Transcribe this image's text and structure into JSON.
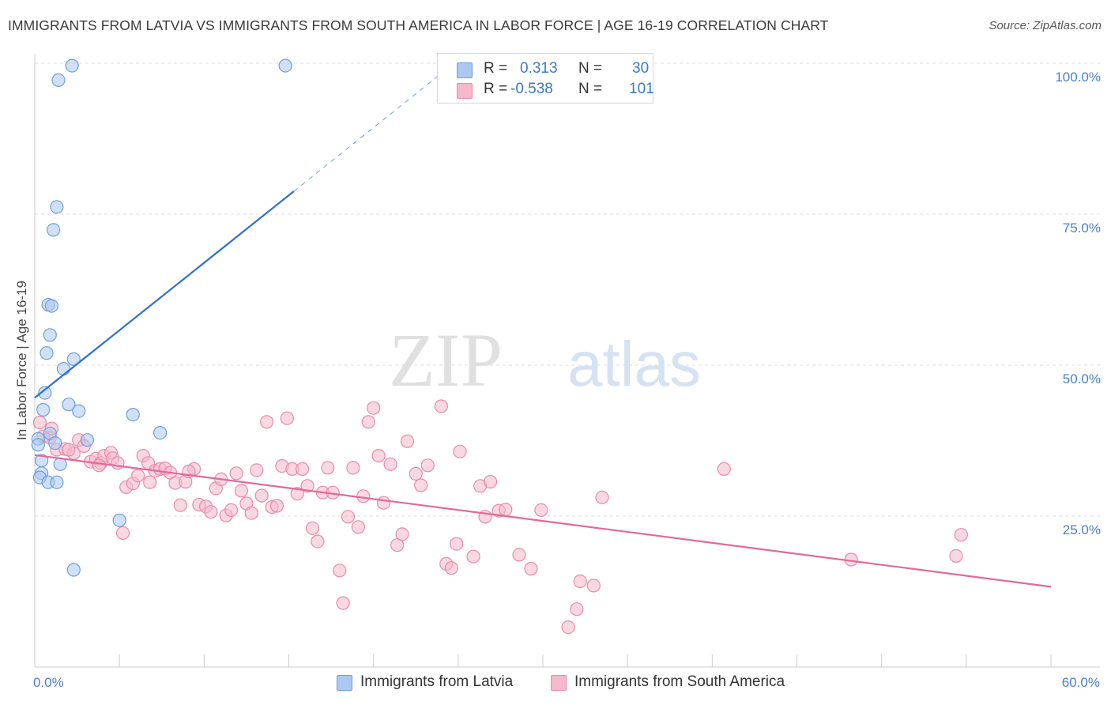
{
  "title": "IMMIGRANTS FROM LATVIA VS IMMIGRANTS FROM SOUTH AMERICA IN LABOR FORCE | AGE 16-19 CORRELATION CHART",
  "source": "Source: ZipAtlas.com",
  "watermark": {
    "zip": "ZIP",
    "atlas": "atlas"
  },
  "colors": {
    "blue_fill": "#aac8f0",
    "blue_stroke": "#6f9fd8",
    "blue_line": "#2f6fcc",
    "pink_fill": "#f6b8cb",
    "pink_stroke": "#e88aa8",
    "pink_line": "#e2699a",
    "tick_text": "#4a7fc8",
    "grid": "#dedede"
  },
  "legend": {
    "rows": [
      {
        "series": "Immigrants from Latvia",
        "r_label": "R =",
        "r_value": "0.313",
        "n_label": "N =",
        "n_value": "30"
      },
      {
        "series": "Immigrants from South America",
        "r_label": "R =",
        "r_value": "-0.538",
        "n_label": "N =",
        "n_value": "101"
      }
    ]
  },
  "chart_data": {
    "type": "scatter",
    "title": "IMMIGRANTS FROM LATVIA VS IMMIGRANTS FROM SOUTH AMERICA IN LABOR FORCE | AGE 16-19 CORRELATION CHART",
    "xlabel": "",
    "ylabel": "In Labor Force | Age 16-19",
    "xlim": [
      0,
      60
    ],
    "ylim": [
      0,
      105
    ],
    "x_tick_labels": [
      "0.0%",
      "60.0%"
    ],
    "y_ticks": [
      25,
      50,
      75,
      100
    ],
    "y_tick_labels": [
      "25.0%",
      "50.0%",
      "75.0%",
      "100.0%"
    ],
    "grid": true,
    "series": [
      {
        "name": "Immigrants from Latvia",
        "color": "#aac8f0",
        "r": 0.313,
        "n": 30,
        "trend": {
          "x0": 0.0,
          "y0": 44.6,
          "x1": 15.3,
          "y1": 78.8,
          "dash_to_x": 24.0,
          "dash_to_y": 98.3
        },
        "points": [
          [
            2.2,
            99.6
          ],
          [
            14.8,
            99.6
          ],
          [
            1.4,
            97.2
          ],
          [
            1.3,
            76.2
          ],
          [
            1.1,
            72.4
          ],
          [
            0.8,
            60.0
          ],
          [
            1.0,
            59.8
          ],
          [
            0.9,
            55.0
          ],
          [
            0.7,
            52.0
          ],
          [
            2.3,
            51.0
          ],
          [
            1.7,
            49.4
          ],
          [
            0.6,
            45.4
          ],
          [
            2.0,
            43.5
          ],
          [
            2.6,
            42.4
          ],
          [
            5.8,
            41.8
          ],
          [
            0.5,
            42.6
          ],
          [
            7.4,
            38.8
          ],
          [
            0.9,
            38.7
          ],
          [
            3.1,
            37.6
          ],
          [
            1.2,
            37.1
          ],
          [
            0.2,
            37.8
          ],
          [
            0.2,
            36.8
          ],
          [
            0.4,
            34.2
          ],
          [
            1.5,
            33.6
          ],
          [
            0.4,
            32.1
          ],
          [
            0.3,
            31.4
          ],
          [
            0.8,
            30.6
          ],
          [
            1.3,
            30.6
          ],
          [
            5.0,
            24.3
          ],
          [
            2.3,
            16.1
          ]
        ]
      },
      {
        "name": "Immigrants from South America",
        "color": "#f6b8cb",
        "r": -0.538,
        "n": 101,
        "trend": {
          "x0": 0.0,
          "y0": 35.1,
          "x1": 60.0,
          "y1": 13.3
        },
        "points": [
          [
            0.3,
            40.5
          ],
          [
            0.5,
            38.2
          ],
          [
            0.9,
            38.0
          ],
          [
            1.3,
            36.0
          ],
          [
            1.8,
            36.1
          ],
          [
            2.3,
            35.4
          ],
          [
            2.6,
            37.6
          ],
          [
            2.9,
            36.6
          ],
          [
            3.3,
            34.0
          ],
          [
            3.6,
            34.5
          ],
          [
            3.9,
            33.8
          ],
          [
            4.1,
            35.0
          ],
          [
            4.5,
            35.5
          ],
          [
            4.6,
            34.6
          ],
          [
            4.9,
            33.8
          ],
          [
            5.2,
            22.2
          ],
          [
            5.4,
            29.8
          ],
          [
            5.8,
            30.4
          ],
          [
            6.1,
            31.7
          ],
          [
            6.4,
            35.0
          ],
          [
            6.7,
            33.8
          ],
          [
            7.1,
            32.5
          ],
          [
            7.4,
            32.8
          ],
          [
            7.7,
            32.9
          ],
          [
            8.0,
            32.2
          ],
          [
            8.3,
            30.5
          ],
          [
            8.6,
            26.8
          ],
          [
            8.9,
            30.7
          ],
          [
            9.4,
            32.8
          ],
          [
            9.7,
            26.9
          ],
          [
            10.1,
            26.6
          ],
          [
            10.4,
            25.7
          ],
          [
            10.7,
            29.6
          ],
          [
            11.0,
            31.1
          ],
          [
            11.3,
            25.1
          ],
          [
            11.6,
            26.0
          ],
          [
            11.9,
            32.1
          ],
          [
            12.2,
            29.2
          ],
          [
            12.5,
            27.1
          ],
          [
            12.8,
            25.5
          ],
          [
            13.1,
            32.6
          ],
          [
            13.4,
            28.4
          ],
          [
            13.7,
            40.6
          ],
          [
            14.0,
            26.5
          ],
          [
            14.3,
            26.7
          ],
          [
            14.6,
            33.3
          ],
          [
            14.9,
            41.2
          ],
          [
            15.2,
            32.8
          ],
          [
            15.5,
            28.7
          ],
          [
            15.8,
            32.8
          ],
          [
            16.1,
            30.0
          ],
          [
            16.4,
            23.0
          ],
          [
            16.7,
            20.8
          ],
          [
            17.0,
            28.9
          ],
          [
            17.3,
            33.0
          ],
          [
            17.6,
            28.9
          ],
          [
            18.0,
            16.0
          ],
          [
            18.2,
            10.6
          ],
          [
            18.5,
            24.9
          ],
          [
            18.8,
            33.0
          ],
          [
            19.1,
            23.2
          ],
          [
            19.4,
            28.3
          ],
          [
            19.7,
            40.6
          ],
          [
            20.0,
            42.9
          ],
          [
            20.3,
            35.0
          ],
          [
            20.6,
            27.2
          ],
          [
            21.0,
            33.6
          ],
          [
            21.4,
            20.2
          ],
          [
            21.7,
            22.0
          ],
          [
            22.0,
            37.4
          ],
          [
            22.5,
            32.0
          ],
          [
            22.8,
            30.1
          ],
          [
            23.2,
            33.4
          ],
          [
            24.0,
            43.2
          ],
          [
            24.3,
            17.1
          ],
          [
            24.6,
            16.4
          ],
          [
            24.9,
            20.4
          ],
          [
            25.1,
            35.7
          ],
          [
            25.9,
            18.3
          ],
          [
            26.3,
            30.0
          ],
          [
            26.6,
            24.9
          ],
          [
            26.9,
            30.7
          ],
          [
            27.4,
            25.9
          ],
          [
            27.8,
            26.1
          ],
          [
            28.6,
            18.6
          ],
          [
            29.3,
            16.3
          ],
          [
            29.9,
            26.0
          ],
          [
            31.5,
            6.6
          ],
          [
            32.0,
            9.6
          ],
          [
            32.2,
            14.2
          ],
          [
            33.0,
            13.5
          ],
          [
            33.5,
            28.1
          ],
          [
            40.7,
            32.8
          ],
          [
            48.2,
            17.8
          ],
          [
            54.4,
            18.4
          ],
          [
            54.7,
            21.9
          ],
          [
            1.0,
            39.5
          ],
          [
            2.0,
            36.0
          ],
          [
            3.8,
            33.4
          ],
          [
            6.8,
            30.6
          ],
          [
            9.1,
            32.4
          ]
        ]
      }
    ]
  }
}
